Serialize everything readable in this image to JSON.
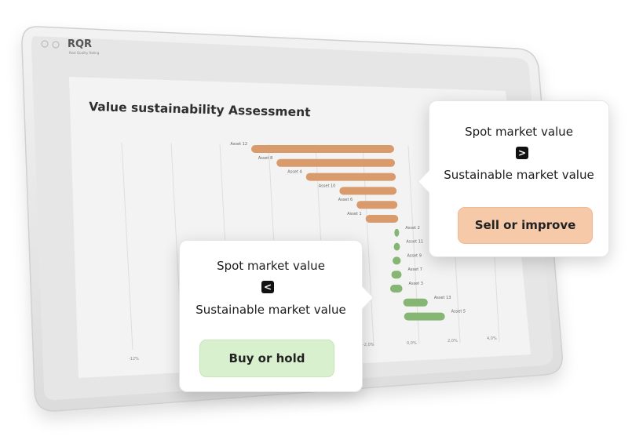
{
  "brand": {
    "logo_text": "RQR",
    "logo_tagline": "Real Quality Rating"
  },
  "chart_data": {
    "type": "bar",
    "orientation": "horizontal",
    "title": "Value sustainability Assessment",
    "x_tick_labels": [
      "-12%",
      "-2,0%",
      "0,0%",
      "2,0%",
      "4,0%"
    ],
    "categories": [
      "Asset 12",
      "Asset 8",
      "Asset 4",
      "Asset 10",
      "Asset 6",
      "Asset 1",
      "Asset 2",
      "Asset 11",
      "Asset 9",
      "Asset 7",
      "Asset 3",
      "Asset 13",
      "Asset 5"
    ],
    "values": [
      -7.0,
      -5.8,
      -4.4,
      -2.8,
      -2.0,
      -1.6,
      -0.1,
      -0.3,
      -0.4,
      -0.5,
      -0.6,
      1.2,
      2.0
    ],
    "colors": {
      "negative": "#d99a6c",
      "positive": "#86b673"
    },
    "grid": true
  },
  "callout_sell": {
    "line1": "Spot market value",
    "operator": ">",
    "line2": "Sustainable market value",
    "action": "Sell or improve",
    "action_color": "#f6c9a9"
  },
  "callout_buy": {
    "line1": "Spot market value",
    "operator": "<",
    "line2": "Sustainable market value",
    "action": "Buy or hold",
    "action_color": "#d8f0cd"
  }
}
